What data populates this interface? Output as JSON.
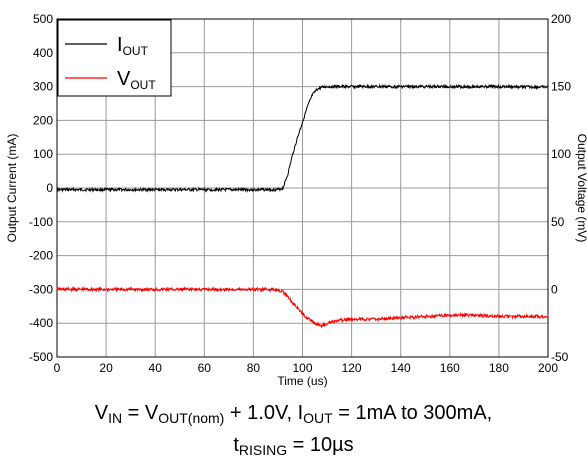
{
  "chart_data": {
    "type": "line",
    "xlabel": "Time (us)",
    "ylabel_left": "Output Current (mA)",
    "ylabel_right": "Output Voltage (mV)",
    "xlim": [
      0,
      200
    ],
    "ylim_left": [
      -500,
      500
    ],
    "ylim_right": [
      -50,
      200
    ],
    "x_ticks": [
      0,
      20,
      40,
      60,
      80,
      100,
      120,
      140,
      160,
      180,
      200
    ],
    "y_left_ticks": [
      -500,
      -400,
      -300,
      -200,
      -100,
      0,
      100,
      200,
      300,
      400,
      500
    ],
    "y_right_ticks": [
      -50,
      0,
      50,
      100,
      150,
      200
    ],
    "grid": true,
    "legend_position": "top-left",
    "series": [
      {
        "name": "I_OUT",
        "legend_main": "I",
        "legend_sub": "OUT",
        "axis": "left",
        "color": "#000000",
        "x": [
          0,
          20,
          40,
          60,
          80,
          90,
          92,
          94,
          96,
          98,
          100,
          102,
          104,
          106,
          108,
          110,
          120,
          140,
          160,
          180,
          200
        ],
        "y": [
          -5,
          -5,
          -5,
          -5,
          -5,
          -5,
          0,
          40,
          100,
          150,
          195,
          240,
          275,
          292,
          298,
          300,
          300,
          300,
          300,
          300,
          298
        ]
      },
      {
        "name": "V_OUT",
        "legend_main": "V",
        "legend_sub": "OUT",
        "axis": "right",
        "color": "#ff0000",
        "x": [
          0,
          20,
          40,
          60,
          80,
          90,
          92,
          94,
          96,
          98,
          100,
          102,
          104,
          106,
          108,
          110,
          115,
          120,
          130,
          140,
          150,
          160,
          170,
          180,
          190,
          200
        ],
        "y": [
          0,
          0,
          0,
          0,
          0,
          0,
          -2,
          -5,
          -10,
          -14,
          -18,
          -21,
          -24,
          -26,
          -27,
          -25,
          -23,
          -22,
          -22,
          -21,
          -20,
          -19,
          -19,
          -20,
          -20,
          -20
        ]
      }
    ]
  },
  "caption": {
    "line1": [
      {
        "t": "V"
      },
      {
        "t": "IN",
        "sub": true
      },
      {
        "t": " = V"
      },
      {
        "t": "OUT(nom)",
        "sub": true
      },
      {
        "t": " + 1.0V, I"
      },
      {
        "t": "OUT",
        "sub": true
      },
      {
        "t": " = 1mA to 300mA,"
      }
    ],
    "line2": [
      {
        "t": "t"
      },
      {
        "t": "RISING",
        "sub": true
      },
      {
        "t": " = 10µs"
      }
    ]
  }
}
